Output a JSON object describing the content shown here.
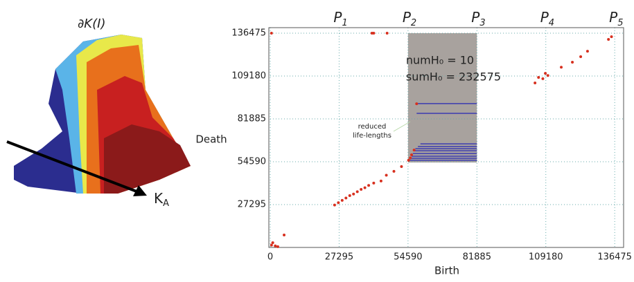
{
  "illustration": {
    "title": "∂K(I)",
    "axis_label": {
      "base": "K",
      "sub": "A"
    }
  },
  "chart_data": {
    "type": "scatter",
    "x_label": "Birth",
    "y_label": "Death",
    "color": "#d7301f",
    "x": [
      500,
      1000,
      2000,
      3000,
      5500,
      25500,
      27000,
      28500,
      30000,
      31500,
      33000,
      34500,
      36000,
      37500,
      39000,
      41000,
      43900,
      46000,
      49000,
      52000,
      54800,
      55500,
      56000,
      57000,
      58000,
      500,
      40300,
      41000,
      46300,
      104900,
      106300,
      108000,
      109000,
      110000,
      115300,
      119700,
      123000,
      125700,
      134000,
      135200
    ],
    "values": [
      1500,
      3000,
      1000,
      500,
      7900,
      27000,
      28500,
      30000,
      31500,
      33000,
      34000,
      35500,
      37000,
      38000,
      39500,
      41000,
      42300,
      46000,
      48500,
      51500,
      55500,
      57000,
      59000,
      62000,
      91500,
      136475,
      136475,
      136475,
      136475,
      104800,
      108300,
      107500,
      110900,
      109500,
      114800,
      118000,
      121500,
      125000,
      132500,
      134200
    ],
    "xlim": [
      0,
      140000
    ],
    "ylim": [
      0,
      140000
    ],
    "xticks": [
      0,
      27295,
      54590,
      81885,
      109180,
      136475
    ],
    "yticks": [
      27295,
      54590,
      81885,
      109180,
      136475
    ],
    "grid": true,
    "markers": [
      {
        "base": "P",
        "sub": "1"
      },
      {
        "base": "P",
        "sub": "2"
      },
      {
        "base": "P",
        "sub": "3"
      },
      {
        "base": "P",
        "sub": "4"
      },
      {
        "base": "P",
        "sub": "5"
      }
    ],
    "highlight": {
      "x": [
        54590,
        81885
      ],
      "y": [
        54100,
        136475
      ],
      "color": "#a8a29e"
    },
    "lifelines": {
      "color": "#3b3bb0",
      "y": [
        91600,
        85400,
        66000,
        64300,
        62900,
        61600,
        59800,
        58100,
        56800,
        55500
      ],
      "x0": [
        58000,
        58000,
        59500,
        58500,
        57500,
        57000,
        56500,
        56000,
        55500,
        55000
      ]
    },
    "stats": [
      "numH₀ = 10",
      "sumH₀ = 232575"
    ],
    "annotation": [
      "reduced",
      "life-lengths"
    ]
  }
}
